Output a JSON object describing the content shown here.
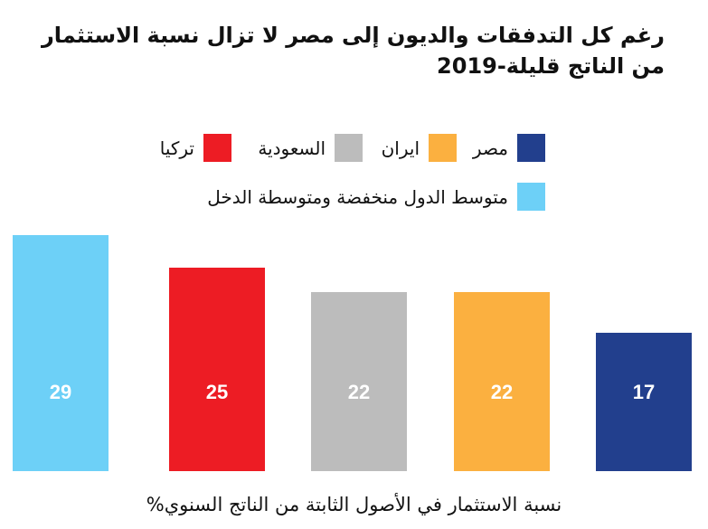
{
  "chart_data": {
    "type": "bar",
    "title": "رغم كل التدفقات والديون إلى مصر لا تزال نسبة الاستثمار من الناتج قليلة-2019",
    "xlabel": "نسبة الاستثمار في الأصول الثابتة من الناتج السنوي%",
    "ylabel": "",
    "ylim": [
      0,
      30
    ],
    "grid": false,
    "legend_position": "top",
    "categories": [
      "متوسط الدول منخفضة ومتوسطة الدخل",
      "تركيا",
      "السعودية",
      "ايران",
      "مصر"
    ],
    "values": [
      29,
      25,
      22,
      22,
      17
    ],
    "colors": [
      "#6dd0f7",
      "#ed1c24",
      "#bcbcbc",
      "#fbb040",
      "#223f8d"
    ],
    "data_labels": [
      "29",
      "25",
      "22",
      "22",
      "17"
    ],
    "legend": [
      {
        "label": "مصر",
        "color": "#223f8d"
      },
      {
        "label": "ايران",
        "color": "#fbb040"
      },
      {
        "label": "السعودية",
        "color": "#bcbcbc"
      },
      {
        "label": "تركيا",
        "color": "#ed1c24"
      },
      {
        "label": "متوسط الدول منخفضة ومتوسطة الدخل",
        "color": "#6dd0f7"
      }
    ],
    "value_label_color": "#ffffff"
  }
}
